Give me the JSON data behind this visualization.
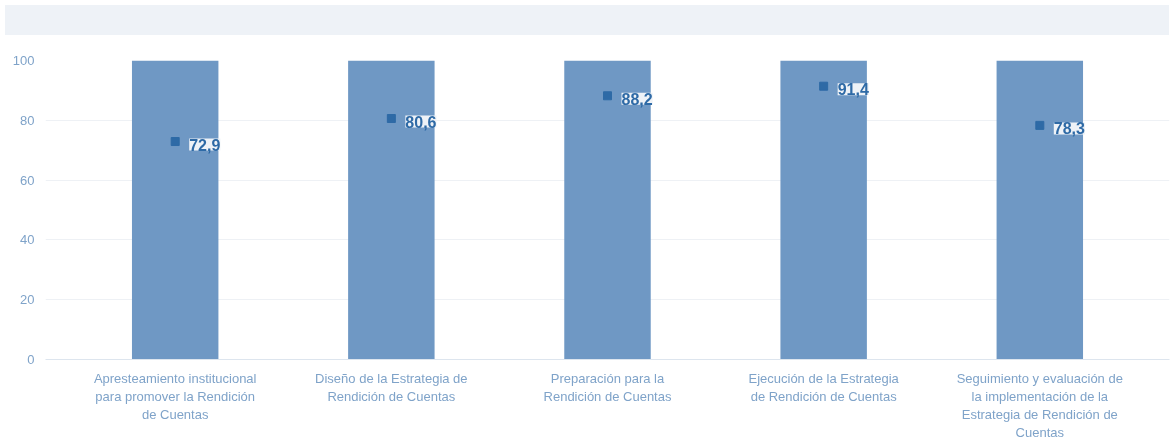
{
  "chart_data": {
    "type": "bar",
    "categories": [
      "Apresteamiento institucional para promover la Rendición de Cuentas",
      "Diseño de la Estrategia de Rendición de Cuentas",
      "Preparación para la Rendición de Cuentas",
      "Ejecución de la Estrategia de Rendición de Cuentas",
      "Seguimiento y evaluación de la implementación de la Estrategia de Rendición de Cuentas"
    ],
    "series": [
      {
        "color": "#6f98c4",
        "values": [
          100,
          100,
          100,
          100,
          100
        ]
      },
      {
        "type": "scatter",
        "marker": "square",
        "color": "#2e6aa6",
        "values": [
          72.9,
          80.6,
          88.2,
          91.4,
          78.3
        ],
        "value_labels": [
          "72,9",
          "80,6",
          "88,2",
          "91,4",
          "78,3"
        ]
      }
    ],
    "ylim": [
      0,
      100
    ],
    "yticks": [
      0,
      20,
      40,
      60,
      80,
      100
    ],
    "grid": "y"
  }
}
